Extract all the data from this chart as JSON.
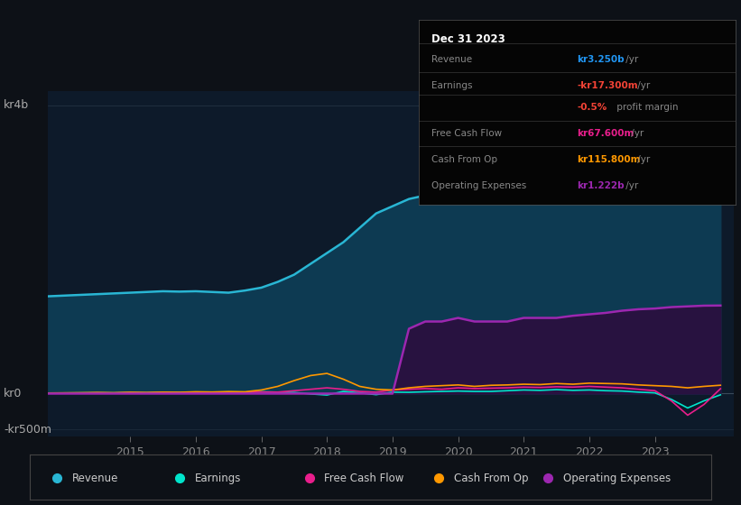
{
  "bg_color": "#0d1117",
  "chart_bg": "#0d1a2a",
  "ylabel_color": "#aaaaaa",
  "grid_color": "#3a4a5a",
  "years_x": [
    2013.75,
    2014.0,
    2014.25,
    2014.5,
    2014.75,
    2015.0,
    2015.25,
    2015.5,
    2015.75,
    2016.0,
    2016.25,
    2016.5,
    2016.75,
    2017.0,
    2017.25,
    2017.5,
    2017.75,
    2018.0,
    2018.25,
    2018.5,
    2018.75,
    2019.0,
    2019.25,
    2019.5,
    2019.75,
    2020.0,
    2020.25,
    2020.5,
    2020.75,
    2021.0,
    2021.25,
    2021.5,
    2021.75,
    2022.0,
    2022.25,
    2022.5,
    2022.75,
    2023.0,
    2023.25,
    2023.5,
    2023.75,
    2024.0
  ],
  "revenue": [
    1350,
    1360,
    1370,
    1380,
    1390,
    1400,
    1410,
    1420,
    1415,
    1420,
    1410,
    1400,
    1430,
    1470,
    1550,
    1650,
    1800,
    1950,
    2100,
    2300,
    2500,
    2600,
    2700,
    2750,
    2750,
    2900,
    2950,
    2850,
    2850,
    2900,
    3000,
    3100,
    3200,
    3400,
    3700,
    3850,
    3800,
    3600,
    3500,
    3400,
    3300,
    3250
  ],
  "earnings": [
    5,
    8,
    10,
    12,
    10,
    15,
    12,
    18,
    15,
    20,
    18,
    22,
    20,
    25,
    20,
    15,
    -5,
    -20,
    30,
    10,
    -15,
    20,
    18,
    25,
    30,
    35,
    30,
    30,
    40,
    50,
    45,
    55,
    45,
    50,
    40,
    35,
    20,
    10,
    -80,
    -200,
    -100,
    -17
  ],
  "free_cash_flow": [
    5,
    8,
    6,
    10,
    8,
    12,
    10,
    15,
    12,
    18,
    15,
    20,
    18,
    22,
    20,
    40,
    60,
    80,
    60,
    30,
    20,
    50,
    60,
    70,
    60,
    80,
    70,
    75,
    80,
    90,
    85,
    95,
    90,
    100,
    90,
    80,
    60,
    40,
    -100,
    -300,
    -150,
    67.6
  ],
  "cash_from_op": [
    8,
    10,
    12,
    15,
    12,
    18,
    15,
    20,
    18,
    25,
    22,
    28,
    25,
    50,
    100,
    180,
    250,
    280,
    200,
    100,
    60,
    50,
    80,
    100,
    110,
    120,
    100,
    115,
    120,
    130,
    125,
    140,
    130,
    145,
    140,
    135,
    120,
    110,
    100,
    80,
    100,
    115.8
  ],
  "operating_expenses": [
    0,
    0,
    0,
    0,
    0,
    0,
    0,
    0,
    0,
    0,
    0,
    0,
    0,
    0,
    0,
    0,
    0,
    0,
    0,
    0,
    0,
    0,
    900,
    1000,
    1000,
    1050,
    1000,
    1000,
    1000,
    1050,
    1050,
    1050,
    1080,
    1100,
    1120,
    1150,
    1170,
    1180,
    1200,
    1210,
    1220,
    1222
  ],
  "revenue_color": "#29b6d4",
  "earnings_color": "#00e5cc",
  "free_cash_flow_color": "#e91e8c",
  "cash_from_op_color": "#ff9800",
  "operating_expenses_color": "#9c27b0",
  "revenue_fill": "#0d3a52",
  "operating_expenses_fill": "#2a1040",
  "xticks": [
    2015,
    2016,
    2017,
    2018,
    2019,
    2020,
    2021,
    2022,
    2023
  ],
  "y_label_top": "kr4b",
  "y_label_zero": "kr0",
  "y_label_bottom": "-kr500m",
  "ylim_min": -600,
  "ylim_max": 4200,
  "xlim_min": 2013.75,
  "xlim_max": 2024.2,
  "info_box": {
    "title": "Dec 31 2023",
    "rows": [
      {
        "label": "Revenue",
        "value": "kr3.250b",
        "suffix": " /yr",
        "value_color": "#2196f3"
      },
      {
        "label": "Earnings",
        "value": "-kr17.300m",
        "suffix": " /yr",
        "value_color": "#f44336"
      },
      {
        "label": "",
        "pct": "-0.5%",
        "rest": " profit margin",
        "value_color": "#f44336"
      },
      {
        "label": "Free Cash Flow",
        "value": "kr67.600m",
        "suffix": " /yr",
        "value_color": "#e91e8c"
      },
      {
        "label": "Cash From Op",
        "value": "kr115.800m",
        "suffix": " /yr",
        "value_color": "#ff9800"
      },
      {
        "label": "Operating Expenses",
        "value": "kr1.222b",
        "suffix": " /yr",
        "value_color": "#9c27b0"
      }
    ]
  },
  "legend_entries": [
    {
      "label": "Revenue",
      "color": "#29b6d4"
    },
    {
      "label": "Earnings",
      "color": "#00e5cc"
    },
    {
      "label": "Free Cash Flow",
      "color": "#e91e8c"
    },
    {
      "label": "Cash From Op",
      "color": "#ff9800"
    },
    {
      "label": "Operating Expenses",
      "color": "#9c27b0"
    }
  ]
}
